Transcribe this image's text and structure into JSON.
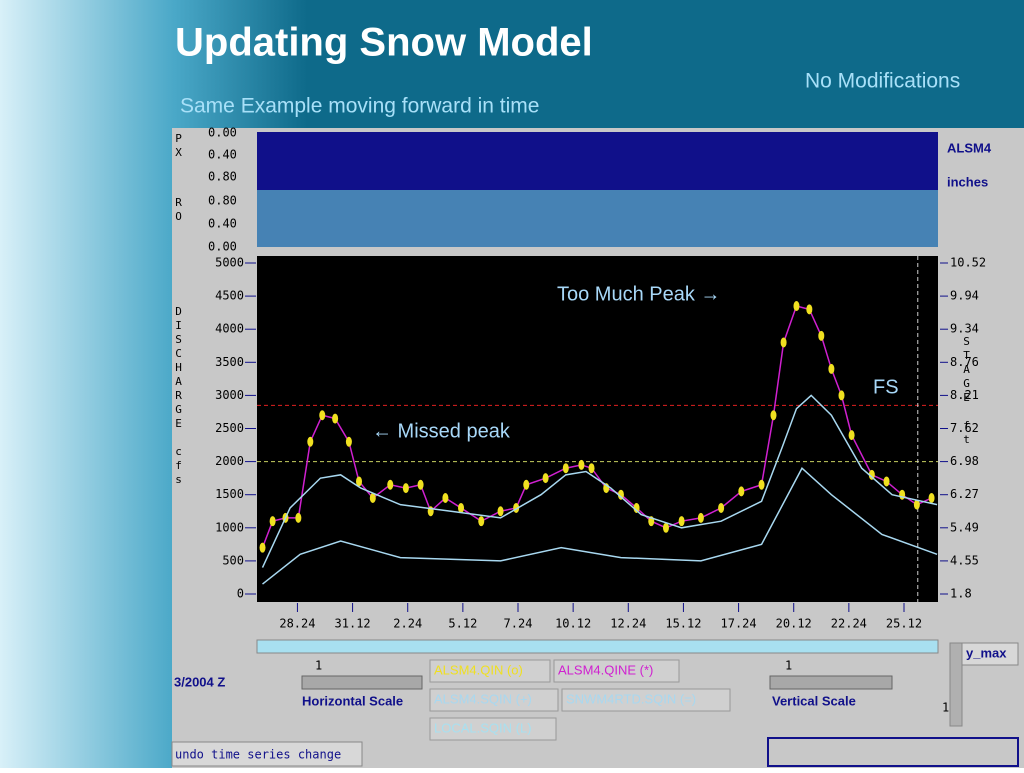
{
  "slide": {
    "title": "Updating Snow Model",
    "subtitle": "Same Example moving forward in time",
    "note": "No Modifications"
  },
  "annotations": {
    "too_much": "Too Much Peak →",
    "missed": "← Missed peak",
    "fs": "FS"
  },
  "top_panels": {
    "px_label": "PX",
    "ro_label": "RO",
    "px_ticks": [
      "0.00",
      "0.40",
      "0.80"
    ],
    "ro_ticks": [
      "0.80",
      "0.40",
      "0.00"
    ],
    "station": "ALSM4",
    "units": "inches"
  },
  "controls": {
    "date": "3/2004 Z",
    "h_value": "1",
    "h_scale": "Horizontal Scale",
    "v_value": "1",
    "v_scale": "Vertical Scale",
    "y_max": "y_max",
    "y_max_value": "1",
    "undo": "undo time series change",
    "buttons": [
      {
        "label": "ALSM4.QINE (*)",
        "color": "#d020d0"
      },
      {
        "label": "LOCAL.SQIN (L)",
        "color": "#a8e0f0"
      }
    ]
  },
  "chart_data": {
    "type": "line",
    "y_label": "DISCHARGE cfs",
    "y2_label": "STAGE ft",
    "xlim": [
      -44,
      697
    ],
    "xticks": [
      {
        "value": 0,
        "label": "28.24"
      },
      {
        "value": 60,
        "label": "31.12"
      },
      {
        "value": 120,
        "label": "2.24"
      },
      {
        "value": 180,
        "label": "5.12"
      },
      {
        "value": 240,
        "label": "7.24"
      },
      {
        "value": 300,
        "label": "10.12"
      },
      {
        "value": 360,
        "label": "12.24"
      },
      {
        "value": 420,
        "label": "15.12"
      },
      {
        "value": 480,
        "label": "17.24"
      },
      {
        "value": 540,
        "label": "20.12"
      },
      {
        "value": 600,
        "label": "22.24"
      },
      {
        "value": 660,
        "label": "25.12"
      }
    ],
    "ylim": [
      0,
      5000
    ],
    "yticks": [
      0,
      500,
      1000,
      1500,
      2000,
      2500,
      3000,
      3500,
      4000,
      4500,
      5000
    ],
    "y2ticks": [
      1.8,
      4.55,
      5.49,
      6.27,
      6.98,
      7.62,
      8.21,
      8.76,
      9.34,
      9.94,
      10.52
    ],
    "hlines": [
      {
        "value": 2850,
        "color": "#e02020"
      },
      {
        "value": 2000,
        "color": "#c8d060"
      }
    ],
    "vline": {
      "value": 675,
      "color": "#d0d0d0"
    },
    "series": [
      {
        "name": "ALSM4.QIN (o)",
        "color": "#f0e020",
        "line_color": "#d020d0",
        "marker": "dot",
        "x": [
          -38,
          -27,
          -13,
          1,
          14,
          27,
          41,
          56,
          67,
          82,
          101,
          118,
          134,
          145,
          161,
          178,
          200,
          221,
          238,
          249,
          270,
          292,
          309,
          320,
          336,
          352,
          369,
          385,
          401,
          418,
          439,
          461,
          483,
          505,
          518,
          529,
          543,
          557,
          570,
          581,
          592,
          603,
          625,
          641,
          658,
          674,
          690
        ],
        "values": [
          700,
          1100,
          1150,
          1150,
          2300,
          2700,
          2650,
          2300,
          1700,
          1450,
          1650,
          1600,
          1650,
          1250,
          1450,
          1300,
          1100,
          1250,
          1300,
          1650,
          1750,
          1900,
          1950,
          1900,
          1600,
          1500,
          1300,
          1100,
          1000,
          1100,
          1150,
          1300,
          1550,
          1650,
          2700,
          3800,
          4350,
          4300,
          3900,
          3400,
          3000,
          2400,
          1800,
          1700,
          1500,
          1350,
          1450
        ]
      },
      {
        "name": "ALSM4.SQIN (+)",
        "color": "#a8d8f0",
        "marker": "line",
        "x": [
          -38,
          -8,
          25,
          47,
          69,
          112,
          167,
          221,
          265,
          292,
          314,
          341,
          374,
          418,
          461,
          505,
          527,
          543,
          559,
          581,
          614,
          647,
          696
        ],
        "values": [
          400,
          1300,
          1750,
          1800,
          1600,
          1350,
          1250,
          1150,
          1500,
          1800,
          1850,
          1600,
          1200,
          1000,
          1100,
          1400,
          2200,
          2800,
          3000,
          2700,
          1900,
          1500,
          1350
        ]
      },
      {
        "name": "SNWM4RTD.SQIN (=)",
        "color": "#a8d8f0",
        "marker": "line",
        "x": [
          -38,
          3,
          47,
          112,
          221,
          287,
          352,
          439,
          505,
          549,
          581,
          636,
          696
        ],
        "values": [
          150,
          600,
          800,
          550,
          500,
          700,
          550,
          500,
          750,
          1900,
          1500,
          900,
          600
        ]
      }
    ]
  }
}
